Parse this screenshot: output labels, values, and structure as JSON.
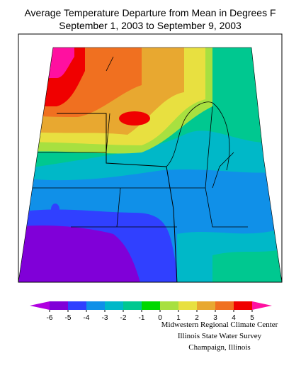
{
  "header": {
    "title": "Average Temperature Departure from Mean in Degrees F",
    "subtitle": "September 1, 2003 to September 9, 2003"
  },
  "legend": {
    "ticks": [
      -6,
      -5,
      -4,
      -3,
      -2,
      -1,
      0,
      1,
      2,
      3,
      4,
      5
    ],
    "colors": [
      "#b000e0",
      "#8000d8",
      "#3040ff",
      "#1090e8",
      "#00b8c8",
      "#00c890",
      "#00d800",
      "#a8e040",
      "#e8e040",
      "#e8a830",
      "#f07020",
      "#f00000",
      "#ff10a0"
    ]
  },
  "credits": [
    "Midwestern Regional Climate Center",
    "Illinois State Water Survey",
    "Champaign, Illinois"
  ]
}
